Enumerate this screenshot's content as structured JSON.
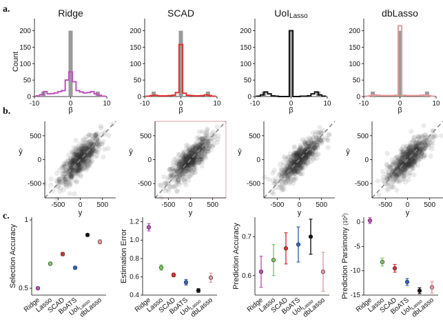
{
  "panel_labels": [
    "a.",
    "b.",
    "c."
  ],
  "colors": {
    "Ridge": "#c050c0",
    "Lasso": "#7cc860",
    "SCAD": "#e03030",
    "BoATS": "#3060c8",
    "UoILasso": "#111111",
    "dbLasso": "#e89898",
    "truth_hist": "#9a9a9a",
    "scatter": "#333333",
    "diagonal": "#888888"
  },
  "chart_data": [
    {
      "type": "bar",
      "panel": "a",
      "title": "Ridge",
      "xlabel": "β",
      "ylabel": "Count",
      "xticks": [
        "-10",
        "0",
        "10"
      ],
      "yticks": [
        "0",
        "50",
        "100",
        "150",
        "200"
      ],
      "xlim": [
        -10,
        10
      ],
      "ylim": [
        0,
        220
      ],
      "truth_bins": [
        [
          -7.5,
          15
        ],
        [
          0,
          200
        ],
        [
          7.5,
          15
        ]
      ],
      "estimate": [
        [
          -9,
          2
        ],
        [
          -8,
          6
        ],
        [
          -7,
          15
        ],
        [
          -6,
          8
        ],
        [
          -5,
          9
        ],
        [
          -4,
          11
        ],
        [
          -3,
          15
        ],
        [
          -2,
          18
        ],
        [
          -1,
          50
        ],
        [
          0,
          75
        ],
        [
          1,
          45
        ],
        [
          2,
          18
        ],
        [
          3,
          14
        ],
        [
          4,
          11
        ],
        [
          5,
          12
        ],
        [
          6,
          15
        ],
        [
          7,
          8
        ],
        [
          8,
          4
        ],
        [
          9,
          1
        ]
      ],
      "series": [
        {
          "name": "Ridge"
        }
      ]
    },
    {
      "type": "bar",
      "panel": "a",
      "title": "SCAD",
      "xlabel": "β",
      "xticks": [
        "-10",
        "0",
        "10"
      ],
      "yticks": [
        "0",
        "50",
        "100",
        "150",
        "200"
      ],
      "xlim": [
        -10,
        10
      ],
      "ylim": [
        0,
        220
      ],
      "truth_bins": [
        [
          -7.5,
          15
        ],
        [
          0,
          200
        ],
        [
          7.5,
          15
        ]
      ],
      "estimate": [
        [
          -9,
          1
        ],
        [
          -8,
          3
        ],
        [
          -7,
          4
        ],
        [
          -6,
          2
        ],
        [
          -5,
          2
        ],
        [
          -4,
          2
        ],
        [
          -3,
          3
        ],
        [
          -2,
          4
        ],
        [
          -1,
          12
        ],
        [
          0,
          158
        ],
        [
          1,
          10
        ],
        [
          2,
          4
        ],
        [
          3,
          3
        ],
        [
          4,
          2
        ],
        [
          5,
          2
        ],
        [
          6,
          3
        ],
        [
          7,
          5
        ],
        [
          8,
          3
        ],
        [
          9,
          1
        ]
      ],
      "series": [
        {
          "name": "SCAD"
        }
      ]
    },
    {
      "type": "bar",
      "panel": "a",
      "title": "UoI",
      "title_sub": "Lasso",
      "xlabel": "β",
      "xticks": [
        "-10",
        "0",
        "10"
      ],
      "yticks": [
        "0",
        "50",
        "100",
        "150",
        "200"
      ],
      "xlim": [
        -10,
        10
      ],
      "ylim": [
        0,
        220
      ],
      "truth_bins": [
        [
          -7.5,
          15
        ],
        [
          0,
          200
        ],
        [
          7.5,
          15
        ]
      ],
      "estimate": [
        [
          -9,
          1
        ],
        [
          -8,
          5
        ],
        [
          -7,
          14
        ],
        [
          -6,
          8
        ],
        [
          -5,
          2
        ],
        [
          -4,
          1
        ],
        [
          -3,
          0
        ],
        [
          -2,
          0
        ],
        [
          -1,
          0
        ],
        [
          0,
          200
        ],
        [
          1,
          0
        ],
        [
          2,
          0
        ],
        [
          3,
          1
        ],
        [
          4,
          1
        ],
        [
          5,
          2
        ],
        [
          6,
          8
        ],
        [
          7,
          14
        ],
        [
          8,
          5
        ],
        [
          9,
          1
        ]
      ],
      "series": [
        {
          "name": "UoILasso"
        }
      ]
    },
    {
      "type": "bar",
      "panel": "a",
      "title": "dbLasso",
      "xlabel": "β",
      "xticks": [
        "-10",
        "0",
        "10"
      ],
      "yticks": [
        "0",
        "50",
        "100",
        "150",
        "200"
      ],
      "xlim": [
        -10,
        10
      ],
      "ylim": [
        0,
        220
      ],
      "truth_bins": [
        [
          -7.5,
          15
        ],
        [
          0,
          200
        ],
        [
          7.5,
          15
        ]
      ],
      "estimate": [
        [
          -9,
          1
        ],
        [
          -8,
          3
        ],
        [
          -7,
          5
        ],
        [
          -6,
          4
        ],
        [
          -5,
          3
        ],
        [
          -4,
          3
        ],
        [
          -3,
          3
        ],
        [
          -2,
          3
        ],
        [
          -1,
          4
        ],
        [
          0,
          215
        ],
        [
          1,
          4
        ],
        [
          2,
          3
        ],
        [
          3,
          3
        ],
        [
          4,
          3
        ],
        [
          5,
          3
        ],
        [
          6,
          4
        ],
        [
          7,
          5
        ],
        [
          8,
          3
        ],
        [
          9,
          1
        ]
      ],
      "series": [
        {
          "name": "dbLasso"
        }
      ]
    },
    {
      "type": "scatter",
      "panel": "b",
      "xlabel": "y",
      "ylabel": "ŷ",
      "xticks": [
        "-500",
        "0",
        "500"
      ],
      "yticks": [
        "-500",
        "0",
        "500"
      ],
      "xlim": [
        -800,
        800
      ],
      "ylim": [
        -800,
        800
      ],
      "spread": 150
    },
    {
      "type": "scatter",
      "panel": "b",
      "xlabel": "y",
      "ylabel": "ŷ",
      "xticks": [
        "-500",
        "0",
        "500"
      ],
      "yticks": [
        "-500",
        "0",
        "500"
      ],
      "xlim": [
        -800,
        800
      ],
      "ylim": [
        -800,
        800
      ],
      "spread": 140
    },
    {
      "type": "scatter",
      "panel": "b",
      "xlabel": "y",
      "ylabel": "ŷ",
      "xticks": [
        "-500",
        "0",
        "500"
      ],
      "yticks": [
        "-500",
        "0",
        "500"
      ],
      "xlim": [
        -800,
        800
      ],
      "ylim": [
        -800,
        800
      ],
      "spread": 140
    },
    {
      "type": "scatter",
      "panel": "b",
      "xlabel": "y",
      "ylabel": "ŷ",
      "xticks": [
        "-500",
        "0",
        "500"
      ],
      "yticks": [
        "-500",
        "0",
        "500"
      ],
      "xlim": [
        -800,
        800
      ],
      "ylim": [
        -800,
        800
      ],
      "spread": 145
    },
    {
      "type": "scatter",
      "panel": "c",
      "ylabel": "Selection Accuracy",
      "categories": [
        "Ridge",
        "Lasso",
        "SCAD",
        "BoATS",
        "UoILasso",
        "dbLasso"
      ],
      "values": [
        0.5,
        0.68,
        0.75,
        0.65,
        0.89,
        0.84
      ],
      "errors": [
        0.008,
        0.01,
        0.012,
        0.01,
        0.01,
        0.015
      ],
      "yticks": [
        "0.5",
        "1"
      ],
      "ylim": [
        0.45,
        1.02
      ]
    },
    {
      "type": "scatter",
      "panel": "c",
      "ylabel": "Estimation Error",
      "categories": [
        "Ridge",
        "Lasso",
        "SCAD",
        "BoATS",
        "UoILasso",
        "dbLasso"
      ],
      "values": [
        1.14,
        0.7,
        0.62,
        0.54,
        0.45,
        0.59
      ],
      "errors": [
        0.04,
        0.03,
        0.02,
        0.03,
        0.02,
        0.05
      ],
      "yticks": [
        "0.4",
        "0.6",
        "0.8",
        "1.0",
        "1.2"
      ],
      "ylim": [
        0.4,
        1.25
      ]
    },
    {
      "type": "scatter",
      "panel": "c",
      "ylabel": "Prediction Accuracy",
      "categories": [
        "Ridge",
        "Lasso",
        "SCAD",
        "BoATS",
        "UoILasso",
        "dbLasso"
      ],
      "values": [
        0.61,
        0.64,
        0.67,
        0.68,
        0.7,
        0.61
      ],
      "errors": [
        0.04,
        0.04,
        0.04,
        0.045,
        0.045,
        0.05
      ],
      "yticks": [
        "0.6",
        "0.7"
      ],
      "ylim": [
        0.55,
        0.75
      ]
    },
    {
      "type": "scatter",
      "panel": "c",
      "ylabel": "Prediction Parsimony",
      "ylabel_unit": "(10",
      "ylabel_exp": "2",
      "ylabel_close": ")",
      "categories": [
        "Ridge",
        "Lasso",
        "SCAD",
        "BoATS",
        "UoILasso",
        "dbLasso"
      ],
      "values": [
        0.3,
        -8.2,
        -9.5,
        -12.3,
        -14.1,
        -13.4
      ],
      "errors": [
        0.6,
        0.8,
        0.8,
        0.7,
        0.6,
        1.2
      ],
      "yticks": [
        "0",
        "-5",
        "-10",
        "-15"
      ],
      "ylim": [
        -15,
        1
      ]
    }
  ],
  "category_labels": [
    {
      "text": "Ridge",
      "sub": ""
    },
    {
      "text": "Lasso",
      "sub": ""
    },
    {
      "text": "SCAD",
      "sub": ""
    },
    {
      "text": "BoATS",
      "sub": ""
    },
    {
      "text": "UoI",
      "sub": "Lasso"
    },
    {
      "text": "dbLasso",
      "sub": ""
    }
  ]
}
